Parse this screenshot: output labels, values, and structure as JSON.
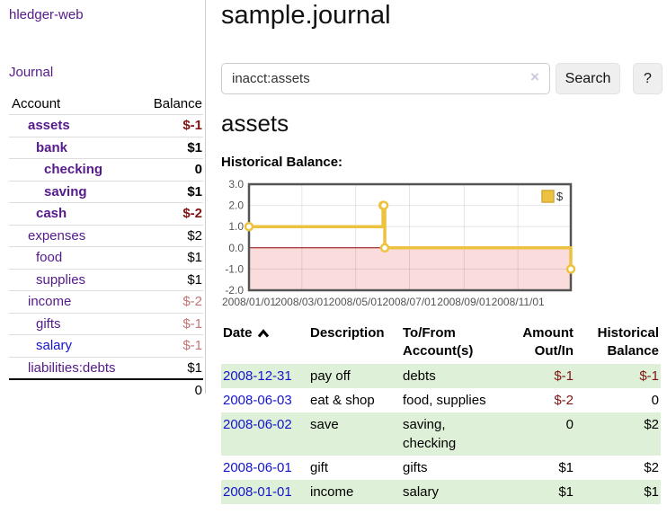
{
  "app": {
    "brand": "hledger-web",
    "nav_journal": "Journal"
  },
  "colors": {
    "link_visited": "#551a8b",
    "link_unvisited": "#1414cc",
    "negative": "#7f1414",
    "negative_muted": "#c17575",
    "row_highlight": "#dff0d8",
    "series": "#edc240"
  },
  "sidebar": {
    "accounts_header": {
      "account": "Account",
      "balance": "Balance"
    },
    "accounts": [
      {
        "name": "assets",
        "indent": 0,
        "bold": true,
        "balance": "$-1",
        "negative": true,
        "unvisited": false
      },
      {
        "name": "bank",
        "indent": 1,
        "bold": true,
        "balance": "$1",
        "negative": false,
        "unvisited": false
      },
      {
        "name": "checking",
        "indent": 2,
        "bold": true,
        "balance": "0",
        "negative": false,
        "unvisited": false
      },
      {
        "name": "saving",
        "indent": 2,
        "bold": true,
        "balance": "$1",
        "negative": false,
        "unvisited": false
      },
      {
        "name": "cash",
        "indent": 1,
        "bold": true,
        "balance": "$-2",
        "negative": true,
        "unvisited": false
      },
      {
        "name": "expenses",
        "indent": 0,
        "bold": false,
        "balance": "$2",
        "negative": false,
        "unvisited": false
      },
      {
        "name": "food",
        "indent": 1,
        "bold": false,
        "balance": "$1",
        "negative": false,
        "unvisited": false
      },
      {
        "name": "supplies",
        "indent": 1,
        "bold": false,
        "balance": "$1",
        "negative": false,
        "unvisited": false
      },
      {
        "name": "income",
        "indent": 0,
        "bold": false,
        "balance": "$-2",
        "negative": true,
        "unvisited": false
      },
      {
        "name": "gifts",
        "indent": 1,
        "bold": false,
        "balance": "$-1",
        "negative": true,
        "unvisited": false
      },
      {
        "name": "salary",
        "indent": 1,
        "bold": false,
        "balance": "$-1",
        "negative": true,
        "unvisited": true
      },
      {
        "name": "liabilities:debts",
        "indent": 0,
        "bold": false,
        "balance": "$1",
        "negative": false,
        "unvisited": false
      }
    ],
    "total": "0"
  },
  "header": {
    "title": "sample.journal"
  },
  "search": {
    "value": "inacct:assets",
    "placeholder": "",
    "clear_icon": "×",
    "button_label": "Search",
    "help_label": "?"
  },
  "account_page": {
    "heading": "assets",
    "chart_label": "Historical Balance:"
  },
  "chart_data": {
    "type": "line",
    "title": "Historical Balance:",
    "step": true,
    "series": [
      {
        "name": "$",
        "color": "#edc240",
        "points": [
          [
            "2008/01/01",
            1
          ],
          [
            "2008/06/01",
            2
          ],
          [
            "2008/06/02",
            2
          ],
          [
            "2008/06/03",
            0
          ],
          [
            "2008/12/31",
            -1
          ]
        ]
      }
    ],
    "x_ticks": [
      "2008/01/01",
      "2008/03/01",
      "2008/05/01",
      "2008/07/01",
      "2008/09/01",
      "2008/11/01"
    ],
    "y_ticks": [
      3.0,
      2.0,
      1.0,
      0.0,
      -1.0,
      -2.0
    ],
    "xlim": [
      "2008/01/01",
      "2008/12/31"
    ],
    "ylim": [
      -2,
      3
    ],
    "grid": true,
    "legend_position": "top-right",
    "negative_region_color": "#fadcdc",
    "zero_line_color": "#8b0000"
  },
  "register": {
    "columns": [
      "Date",
      "Description",
      "To/From Account(s)",
      "Amount Out/In",
      "Historical Balance"
    ],
    "sort_icon": "chevron-up",
    "rows": [
      {
        "date": "2008-12-31",
        "description": "pay off",
        "accounts": "debts",
        "amount": "$-1",
        "amount_negative": true,
        "balance": "$-1",
        "balance_negative": true
      },
      {
        "date": "2008-06-03",
        "description": "eat & shop",
        "accounts": "food, supplies",
        "amount": "$-2",
        "amount_negative": true,
        "balance": "0",
        "balance_negative": false
      },
      {
        "date": "2008-06-02",
        "description": "save",
        "accounts": "saving, checking",
        "amount": "0",
        "amount_negative": false,
        "balance": "$2",
        "balance_negative": false
      },
      {
        "date": "2008-06-01",
        "description": "gift",
        "accounts": "gifts",
        "amount": "$1",
        "amount_negative": false,
        "balance": "$2",
        "balance_negative": false
      },
      {
        "date": "2008-01-01",
        "description": "income",
        "accounts": "salary",
        "amount": "$1",
        "amount_negative": false,
        "balance": "$1",
        "balance_negative": false
      }
    ]
  }
}
